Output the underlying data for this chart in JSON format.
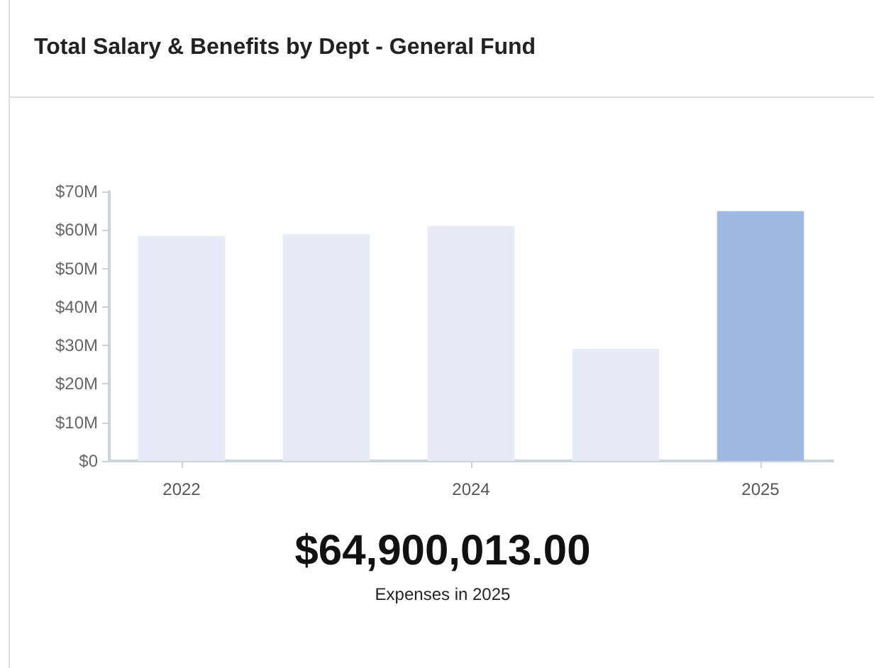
{
  "chart_data": {
    "type": "bar",
    "title": "Total Salary & Benefits by Dept - General Fund",
    "categories": [
      "2022",
      null,
      "2024",
      null,
      "2025"
    ],
    "values": [
      58.5,
      58.9,
      61.0,
      29.1,
      64.9
    ],
    "colors": [
      "#e6ebf7",
      "#e6ebf7",
      "#e6ebf7",
      "#e6ebf7",
      "#a0b9e3"
    ],
    "ylim": [
      0,
      70
    ],
    "yticks": [
      {
        "value": 0,
        "label": "$0"
      },
      {
        "value": 10,
        "label": "$10M"
      },
      {
        "value": 20,
        "label": "$20M"
      },
      {
        "value": 30,
        "label": "$30M"
      },
      {
        "value": 40,
        "label": "$40M"
      },
      {
        "value": 50,
        "label": "$50M"
      },
      {
        "value": 60,
        "label": "$60M"
      },
      {
        "value": 70,
        "label": "$70M"
      }
    ],
    "grid": false,
    "annotations": [
      "$64,900,013.00",
      "Expenses in 2025"
    ]
  }
}
